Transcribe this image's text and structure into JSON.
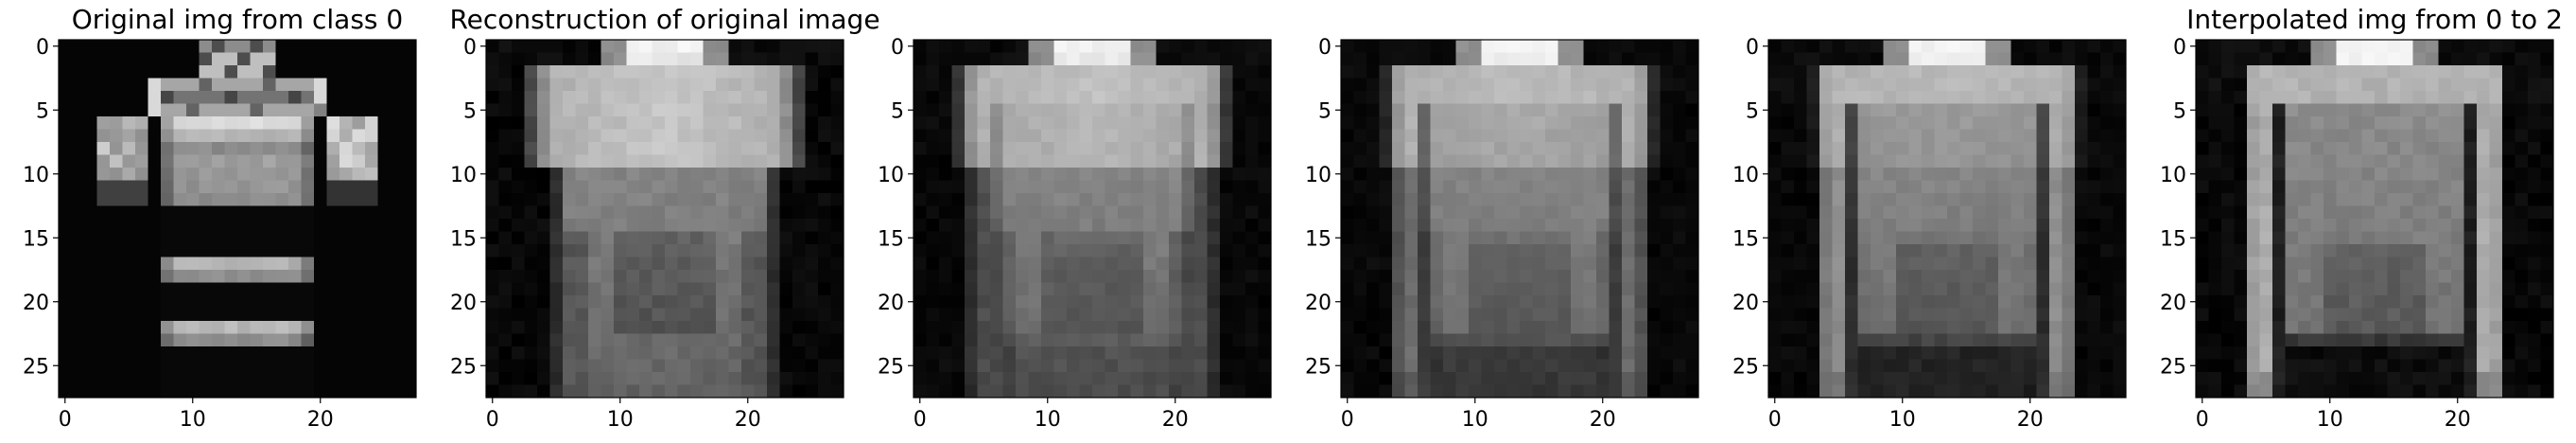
{
  "figure": {
    "panels": [
      {
        "title": "Original img from class 0",
        "image": "fashion-item-original",
        "grid_size": [
          28,
          28
        ],
        "x_ticks": [
          "0",
          "10",
          "20"
        ],
        "y_ticks": [
          "0",
          "5",
          "10",
          "15",
          "20",
          "25"
        ]
      },
      {
        "title": "Reconstruction of original image",
        "image": "tshirt-reconstruction",
        "grid_size": [
          28,
          28
        ],
        "x_ticks": [
          "0",
          "10",
          "20"
        ],
        "y_ticks": [
          "0",
          "5",
          "10",
          "15",
          "20",
          "25"
        ]
      },
      {
        "title": "",
        "image": "interpolation-step-1",
        "grid_size": [
          28,
          28
        ],
        "x_ticks": [
          "0",
          "10",
          "20"
        ],
        "y_ticks": [
          "0",
          "5",
          "10",
          "15",
          "20",
          "25"
        ]
      },
      {
        "title": "",
        "image": "interpolation-step-2",
        "grid_size": [
          28,
          28
        ],
        "x_ticks": [
          "0",
          "10",
          "20"
        ],
        "y_ticks": [
          "0",
          "5",
          "10",
          "15",
          "20",
          "25"
        ]
      },
      {
        "title": "",
        "image": "interpolation-step-3",
        "grid_size": [
          28,
          28
        ],
        "x_ticks": [
          "0",
          "10",
          "20"
        ],
        "y_ticks": [
          "0",
          "5",
          "10",
          "15",
          "20",
          "25"
        ]
      },
      {
        "title": "Interpolated img from 0 to 2",
        "image": "pullover-interpolated",
        "grid_size": [
          28,
          28
        ],
        "x_ticks": [
          "0",
          "10",
          "20"
        ],
        "y_ticks": [
          "0",
          "5",
          "10",
          "15",
          "20",
          "25"
        ]
      }
    ]
  }
}
